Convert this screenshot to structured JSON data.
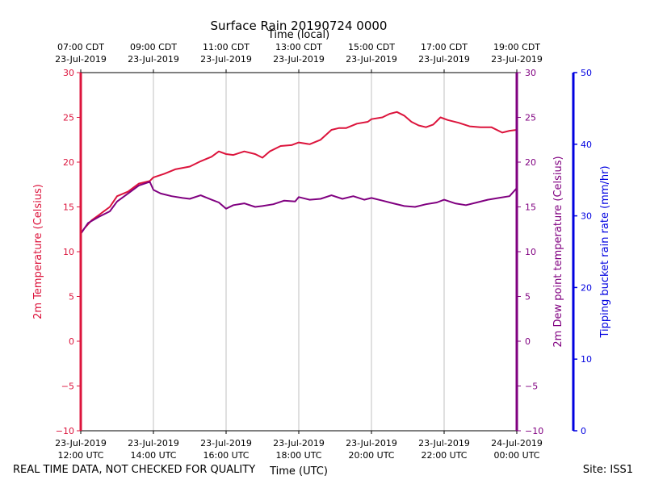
{
  "chart_data": {
    "type": "line",
    "title": "Surface Rain 20190724 0000",
    "top_axis_label": "Time (local)",
    "bottom_axis_label": "Time (UTC)",
    "top_ticks": [
      [
        "07:00 CDT",
        "23-Jul-2019"
      ],
      [
        "09:00 CDT",
        "23-Jul-2019"
      ],
      [
        "11:00 CDT",
        "23-Jul-2019"
      ],
      [
        "13:00 CDT",
        "23-Jul-2019"
      ],
      [
        "15:00 CDT",
        "23-Jul-2019"
      ],
      [
        "17:00 CDT",
        "23-Jul-2019"
      ],
      [
        "19:00 CDT",
        "23-Jul-2019"
      ]
    ],
    "bottom_ticks": [
      [
        "23-Jul-2019",
        "12:00 UTC"
      ],
      [
        "23-Jul-2019",
        "14:00 UTC"
      ],
      [
        "23-Jul-2019",
        "16:00 UTC"
      ],
      [
        "23-Jul-2019",
        "18:00 UTC"
      ],
      [
        "23-Jul-2019",
        "20:00 UTC"
      ],
      [
        "23-Jul-2019",
        "22:00 UTC"
      ],
      [
        "24-Jul-2019",
        "00:00 UTC"
      ]
    ],
    "x_hours_utc": [
      12,
      14,
      16,
      18,
      20,
      22,
      24
    ],
    "left_axis": {
      "label": "2m Temperature (Celsius)",
      "color": "#dc143c",
      "ylim": [
        -10,
        30
      ],
      "ticks": [
        30,
        25,
        20,
        15,
        10,
        5,
        0,
        -5,
        -10
      ]
    },
    "right_axis": {
      "label": "2m Dew point temperature (Celsius)",
      "color": "#800080",
      "ylim": [
        -10,
        30
      ],
      "ticks": [
        30,
        25,
        20,
        15,
        10,
        5,
        0,
        -5,
        -10
      ]
    },
    "rain_axis": {
      "label": "Tipping bucket rain rate (mm/hr)",
      "color": "#0000e0",
      "ylim": [
        0,
        50
      ],
      "ticks": [
        50,
        40,
        30,
        20,
        10,
        0
      ]
    },
    "grid": "vertical",
    "series": [
      {
        "name": "2m Temperature (Celsius)",
        "color": "#dc143c",
        "x": [
          12.0,
          12.1,
          12.3,
          12.5,
          12.8,
          13.0,
          13.3,
          13.6,
          13.9,
          14.0,
          14.3,
          14.6,
          15.0,
          15.3,
          15.6,
          15.8,
          16.0,
          16.2,
          16.5,
          16.8,
          17.0,
          17.2,
          17.5,
          17.8,
          18.0,
          18.3,
          18.6,
          18.9,
          19.1,
          19.3,
          19.6,
          19.9,
          20.0,
          20.3,
          20.5,
          20.7,
          20.9,
          21.1,
          21.3,
          21.5,
          21.7,
          21.9,
          22.1,
          22.4,
          22.7,
          23.0,
          23.3,
          23.6,
          23.8,
          24.0
        ],
        "y": [
          12.0,
          12.6,
          13.5,
          14.1,
          15.0,
          16.2,
          16.7,
          17.6,
          17.9,
          18.3,
          18.7,
          19.2,
          19.5,
          20.1,
          20.6,
          21.2,
          20.9,
          20.8,
          21.2,
          20.9,
          20.5,
          21.2,
          21.8,
          21.9,
          22.2,
          22.0,
          22.5,
          23.6,
          23.8,
          23.8,
          24.3,
          24.5,
          24.8,
          25.0,
          25.4,
          25.6,
          25.2,
          24.5,
          24.1,
          23.9,
          24.2,
          25.0,
          24.7,
          24.4,
          24.0,
          23.9,
          23.9,
          23.3,
          23.5,
          23.6
        ]
      },
      {
        "name": "2m Dew point temperature (Celsius)",
        "color": "#800080",
        "x": [
          12.0,
          12.2,
          12.5,
          12.8,
          13.0,
          13.3,
          13.6,
          13.9,
          14.0,
          14.2,
          14.5,
          14.8,
          15.0,
          15.3,
          15.6,
          15.8,
          16.0,
          16.2,
          16.5,
          16.8,
          17.0,
          17.3,
          17.6,
          17.9,
          18.0,
          18.3,
          18.6,
          18.9,
          19.2,
          19.5,
          19.8,
          20.0,
          20.3,
          20.6,
          20.9,
          21.2,
          21.5,
          21.8,
          22.0,
          22.3,
          22.6,
          22.9,
          23.2,
          23.5,
          23.8,
          24.0
        ],
        "y": [
          12.0,
          13.2,
          13.9,
          14.5,
          15.6,
          16.5,
          17.4,
          17.8,
          16.9,
          16.5,
          16.2,
          16.0,
          15.9,
          16.3,
          15.8,
          15.5,
          14.8,
          15.2,
          15.4,
          15.0,
          15.1,
          15.3,
          15.7,
          15.6,
          16.1,
          15.8,
          15.9,
          16.3,
          15.9,
          16.2,
          15.8,
          16.0,
          15.7,
          15.4,
          15.1,
          15.0,
          15.3,
          15.5,
          15.8,
          15.4,
          15.2,
          15.5,
          15.8,
          16.0,
          16.2,
          17.1
        ]
      }
    ]
  },
  "footer": {
    "left_text": "REAL TIME DATA, NOT CHECKED FOR QUALITY",
    "right_text": "Site: ISS1"
  }
}
